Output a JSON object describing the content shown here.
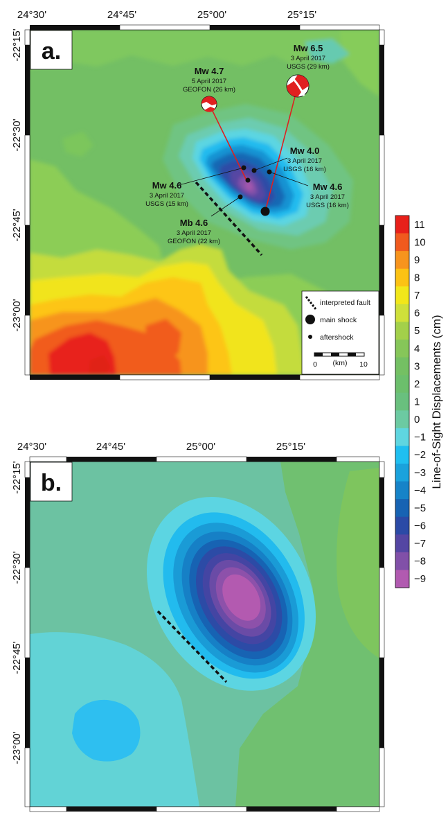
{
  "panels": {
    "a": {
      "letter": "a.",
      "top_ticks": [
        "24°30'",
        "24°45'",
        "25°00'",
        "25°15'"
      ],
      "left_ticks": [
        "-22°15'",
        "-22°30'",
        "-22°45'",
        "-23°00'"
      ]
    },
    "b": {
      "letter": "b.",
      "top_ticks": [
        "24°30'",
        "24°45'",
        "25°00'",
        "25°15'"
      ],
      "left_ticks": [
        "-22°15'",
        "-22°30'",
        "-22°45'",
        "-23°00'"
      ]
    }
  },
  "events": [
    {
      "id": "mw65",
      "mag": "Mw 6.5",
      "date": "3 April 2017",
      "source": "USGS (29 km)"
    },
    {
      "id": "mw47",
      "mag": "Mw 4.7",
      "date": "5 April 2017",
      "source": "GEOFON (26 km)"
    },
    {
      "id": "mw40",
      "mag": "Mw 4.0",
      "date": "3 April 2017",
      "source": "USGS (16 km)"
    },
    {
      "id": "mw46a",
      "mag": "Mw 4.6",
      "date": "3 April 2017",
      "source": "USGS (15 km)"
    },
    {
      "id": "mw46b",
      "mag": "Mw 4.6",
      "date": "3 April 2017",
      "source": "USGS (16 km)"
    },
    {
      "id": "mb46",
      "mag": "Mb 4.6",
      "date": "3 April 2017",
      "source": "GEOFON (22 km)"
    }
  ],
  "legend": {
    "fault": "interpreted fault",
    "main_shock": "main shock",
    "aftershock": "aftershock",
    "scale_zero": "0",
    "scale_unit": "(km)",
    "scale_ten": "10"
  },
  "colorbar": {
    "title": "Line-of-Sight Displacements (cm)",
    "labels": [
      "11",
      "10",
      "9",
      "8",
      "7",
      "6",
      "5",
      "4",
      "3",
      "2",
      "1",
      "0",
      "−1",
      "−2",
      "−3",
      "−4",
      "−5",
      "−6",
      "−7",
      "−8",
      "−9"
    ],
    "colors": [
      "#e8201a",
      "#f05a1e",
      "#f7941d",
      "#fcc214",
      "#f2e71a",
      "#cfe03a",
      "#a3d04a",
      "#86c659",
      "#74c063",
      "#6cbf6c",
      "#69c07e",
      "#6ccaa2",
      "#5fd6e0",
      "#1fbff0",
      "#1aa2dc",
      "#1683c8",
      "#1763b3",
      "#2b4aa6",
      "#5446a3",
      "#8150a8",
      "#b15ab0"
    ]
  }
}
